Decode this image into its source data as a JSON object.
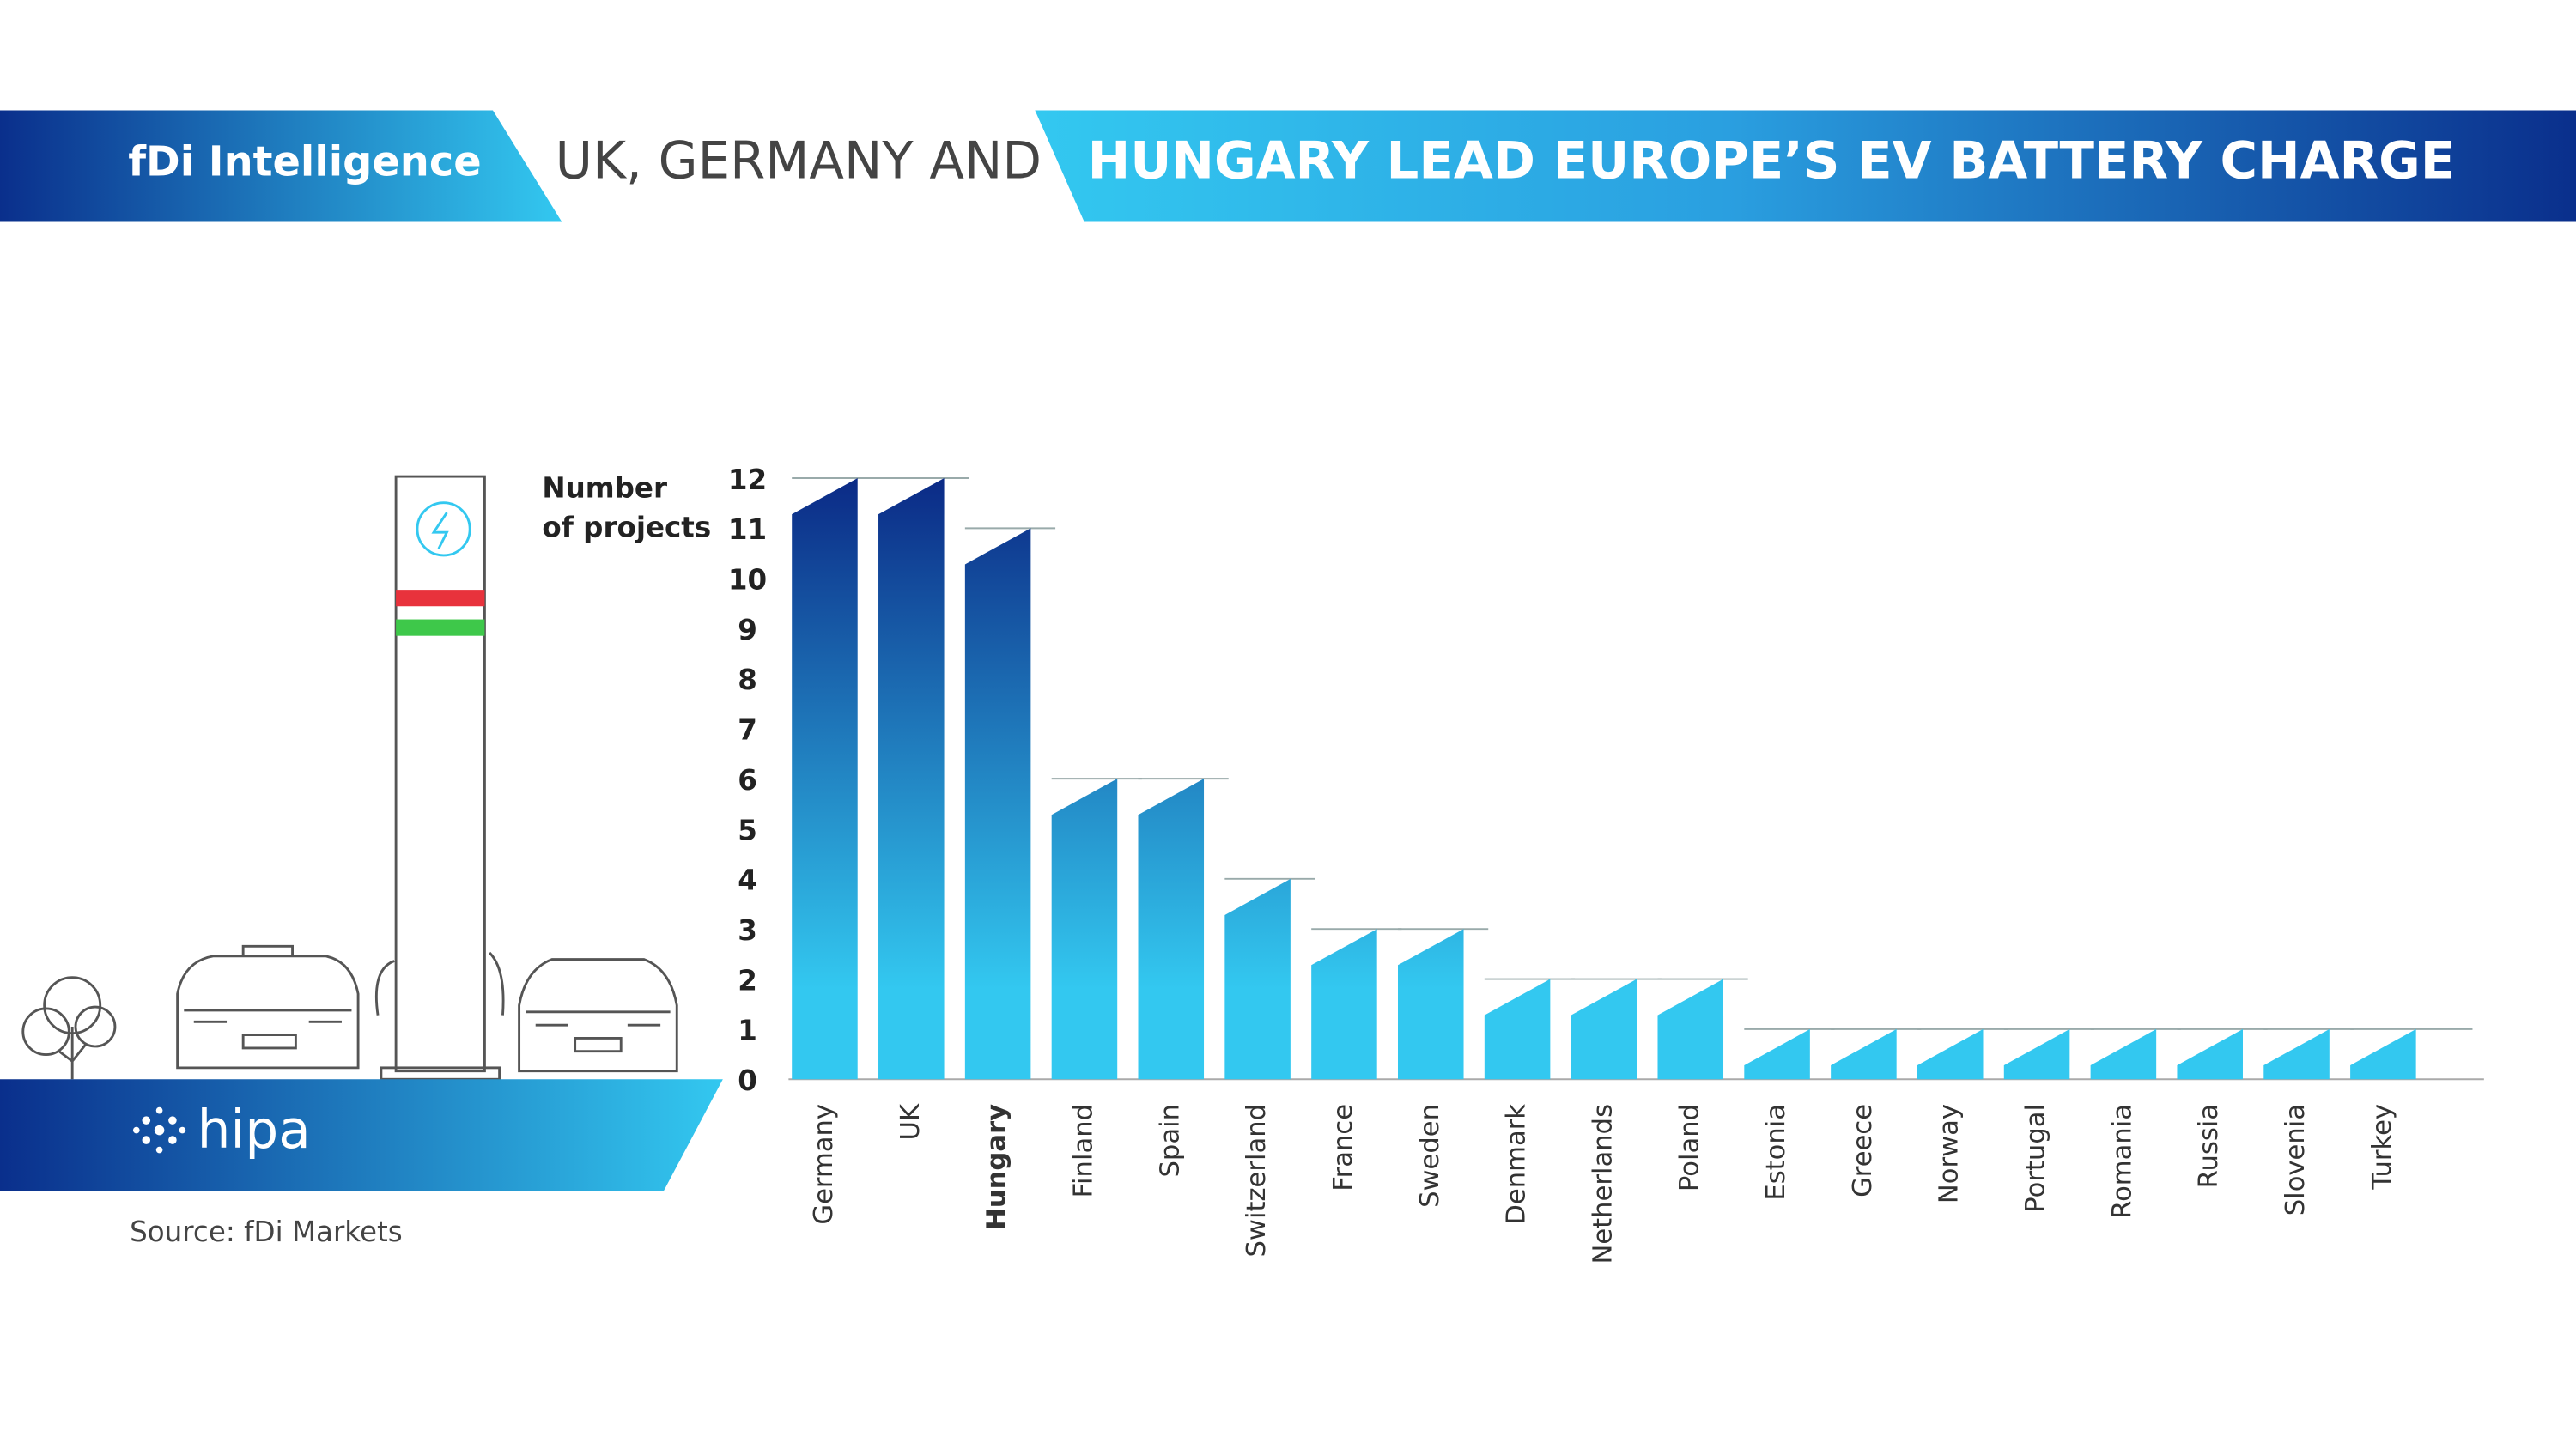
{
  "header": {
    "brand": "fDi Intelligence",
    "title_part1": "UK, GERMANY AND",
    "title_part2": "HUNGARY LEAD EUROPE’S EV BATTERY CHARGE"
  },
  "footer": {
    "logo": "hipa",
    "source": "Source: fDi Markets"
  },
  "chart_data": {
    "type": "bar",
    "ylabel": [
      "Number",
      "of projects"
    ],
    "categories": [
      "Germany",
      "UK",
      "Hungary",
      "Finland",
      "Spain",
      "Switzerland",
      "France",
      "Sweden",
      "Denmark",
      "Netherlands",
      "Poland",
      "Estonia",
      "Greece",
      "Norway",
      "Portugal",
      "Romania",
      "Russia",
      "Slovenia",
      "Turkey"
    ],
    "values": [
      12,
      12,
      11,
      6,
      6,
      4,
      3,
      3,
      2,
      2,
      2,
      1,
      1,
      1,
      1,
      1,
      1,
      1,
      1
    ],
    "highlight": "Hungary",
    "highlight_color": "#33c8f0",
    "gradient": [
      "#0b2a86",
      "#33c8f0"
    ],
    "ylim": [
      0,
      12
    ],
    "yticks": [
      0,
      1,
      2,
      3,
      4,
      5,
      6,
      7,
      8,
      9,
      10,
      11,
      12
    ],
    "grid": true
  }
}
